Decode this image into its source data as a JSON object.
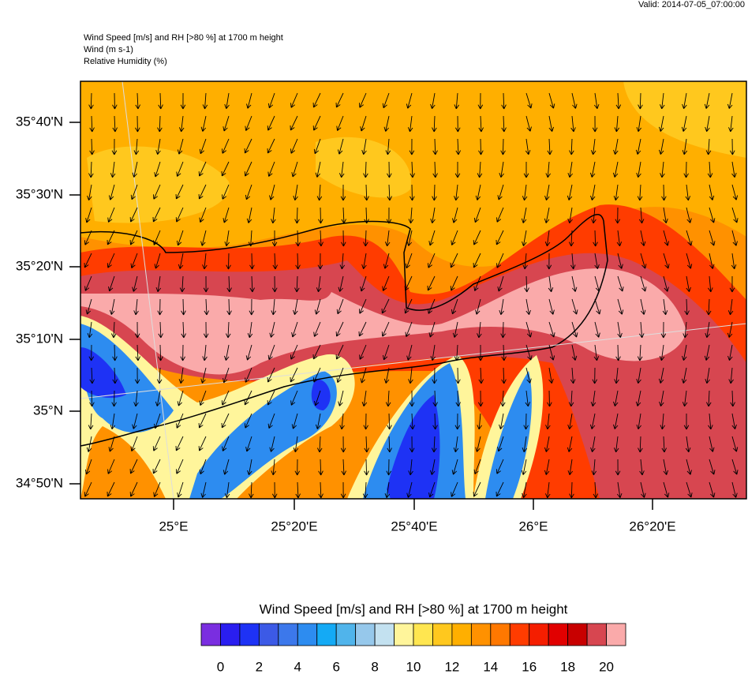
{
  "valid": "Valid: 2014-07-05_07:00:00",
  "header": {
    "lines": [
      "Wind Speed [m/s] and RH [>80 %] at 1700 m height",
      "Wind   (m s-1)",
      "Relative Humidity   (%)"
    ]
  },
  "map": {
    "lat_labels": [
      "35°40'N",
      "35°30'N",
      "35°20'N",
      "35°10'N",
      "35°N",
      "34°50'N"
    ],
    "lon_labels": [
      "25°E",
      "25°20'E",
      "25°40'E",
      "26°E",
      "26°20'E"
    ]
  },
  "colorbar": {
    "title": "Wind Speed [m/s] and RH [>80 %] at 1700 m height",
    "ticks": [
      0,
      2,
      4,
      6,
      8,
      10,
      12,
      14,
      16,
      18,
      20
    ],
    "colors": [
      "#7a2ee0",
      "#2a1ef0",
      "#1e32f5",
      "#3c5ae6",
      "#3c78eb",
      "#2d8cf0",
      "#14aaf5",
      "#50b4eb",
      "#96c8eb",
      "#c3e1f0",
      "#fff59b",
      "#ffe650",
      "#ffc81e",
      "#ffaf00",
      "#ff9100",
      "#ff7800",
      "#ff3c00",
      "#f51e00",
      "#e10000",
      "#c80000",
      "#d74650",
      "#faaaaa"
    ]
  }
}
